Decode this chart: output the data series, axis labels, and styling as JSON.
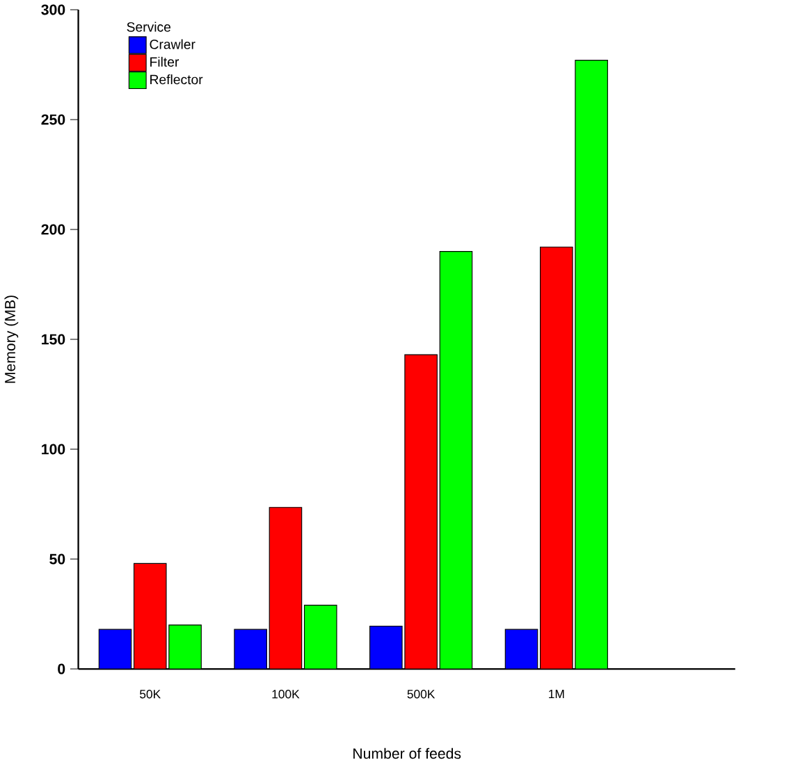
{
  "chart_data": {
    "type": "bar",
    "xlabel": "Number of feeds",
    "ylabel": "Memory (MB)",
    "legend_title": "Service",
    "legend": "top left",
    "categories": [
      "50K",
      "100K",
      "500K",
      "1M"
    ],
    "series": [
      {
        "name": "Crawler",
        "color": "#0000ff",
        "values": [
          18,
          18,
          19.5,
          18
        ]
      },
      {
        "name": "Filter",
        "color": "#ff0000",
        "values": [
          48,
          73.5,
          143,
          192
        ]
      },
      {
        "name": "Reflector",
        "color": "#00ff00",
        "values": [
          20,
          29,
          190,
          277
        ]
      }
    ],
    "ylim": [
      0,
      300
    ],
    "yticks": [
      0,
      50,
      100,
      150,
      200,
      250,
      300
    ]
  }
}
